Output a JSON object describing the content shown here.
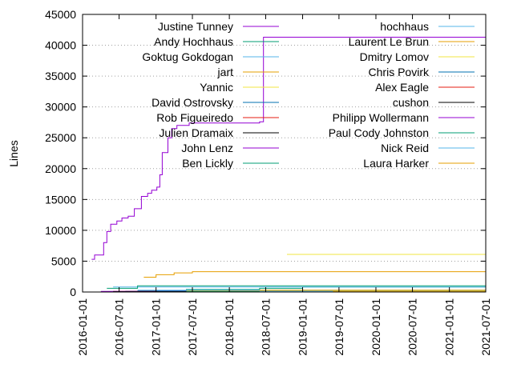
{
  "chart_data": {
    "type": "line",
    "ylabel": "Lines",
    "xlabel": "",
    "title": "",
    "ylim": [
      0,
      45000
    ],
    "yticks": [
      0,
      5000,
      10000,
      15000,
      20000,
      25000,
      30000,
      35000,
      40000,
      45000
    ],
    "xlim": [
      "2016-01-01",
      "2021-07-01"
    ],
    "xticks": [
      "2016-01-01",
      "2016-07-01",
      "2017-01-01",
      "2017-07-01",
      "2018-01-01",
      "2018-07-01",
      "2019-01-01",
      "2019-07-01",
      "2020-01-01",
      "2020-07-01",
      "2021-01-01",
      "2021-07-01"
    ],
    "grid": "horizontal dotted",
    "legend_placement": "top, two columns",
    "step": true,
    "series": [
      {
        "name": "Justine Tunney",
        "color": "#9400d3",
        "points": [
          [
            "2016-02-15",
            5300
          ],
          [
            "2016-03-01",
            6000
          ],
          [
            "2016-04-15",
            8000
          ],
          [
            "2016-05-01",
            9800
          ],
          [
            "2016-05-20",
            11000
          ],
          [
            "2016-06-20",
            11500
          ],
          [
            "2016-07-15",
            12000
          ],
          [
            "2016-08-15",
            12300
          ],
          [
            "2016-09-15",
            13500
          ],
          [
            "2016-10-20",
            15500
          ],
          [
            "2016-11-20",
            16000
          ],
          [
            "2016-12-10",
            16500
          ],
          [
            "2017-01-05",
            17000
          ],
          [
            "2017-01-20",
            19000
          ],
          [
            "2017-02-01",
            22600
          ],
          [
            "2017-03-01",
            25000
          ],
          [
            "2017-03-20",
            26500
          ],
          [
            "2017-04-15",
            27000
          ],
          [
            "2017-06-15",
            27400
          ],
          [
            "2018-06-01",
            27600
          ],
          [
            "2018-06-20",
            41300
          ],
          [
            "2021-07-01",
            41300
          ]
        ]
      },
      {
        "name": "Andy Hochhaus",
        "color": "#009e73",
        "points": [
          [
            "2016-10-01",
            200
          ],
          [
            "2017-06-01",
            400
          ],
          [
            "2018-06-01",
            600
          ],
          [
            "2019-01-01",
            800
          ],
          [
            "2021-07-01",
            900
          ]
        ]
      },
      {
        "name": "Goktug Gokdogan",
        "color": "#56b4e9",
        "points": [
          [
            "2016-06-01",
            800
          ],
          [
            "2021-07-01",
            800
          ]
        ]
      },
      {
        "name": "jart",
        "color": "#e69f00",
        "points": [
          [
            "2016-11-01",
            2400
          ],
          [
            "2017-01-01",
            2800
          ],
          [
            "2017-04-01",
            3100
          ],
          [
            "2017-07-01",
            3300
          ],
          [
            "2021-07-01",
            3300
          ]
        ]
      },
      {
        "name": "Yannic",
        "color": "#f0e442",
        "points": [
          [
            "2018-10-15",
            6100
          ],
          [
            "2021-07-01",
            6100
          ]
        ]
      },
      {
        "name": "David Ostrovsky",
        "color": "#0072b2",
        "points": [
          [
            "2017-01-01",
            200
          ],
          [
            "2021-07-01",
            300
          ]
        ]
      },
      {
        "name": "Rob Figueiredo",
        "color": "#e51e10",
        "points": [
          [
            "2016-06-01",
            100
          ],
          [
            "2021-07-01",
            150
          ]
        ]
      },
      {
        "name": "Julien Dramaix",
        "color": "#000000",
        "points": [
          [
            "2016-08-01",
            100
          ],
          [
            "2021-07-01",
            100
          ]
        ]
      },
      {
        "name": "John Lenz",
        "color": "#9400d3",
        "points": [
          [
            "2016-04-01",
            100
          ],
          [
            "2021-07-01",
            200
          ]
        ]
      },
      {
        "name": "Ben Lickly",
        "color": "#009e73",
        "points": [
          [
            "2016-05-01",
            600
          ],
          [
            "2016-10-01",
            1000
          ],
          [
            "2021-07-01",
            1100
          ]
        ]
      },
      {
        "name": "hochhaus",
        "color": "#56b4e9",
        "points": [
          [
            "2016-10-01",
            300
          ],
          [
            "2021-07-01",
            300
          ]
        ]
      },
      {
        "name": "Laurent Le Brun",
        "color": "#e69f00",
        "points": [
          [
            "2018-06-01",
            300
          ],
          [
            "2021-07-01",
            400
          ]
        ]
      },
      {
        "name": "Dmitry Lomov",
        "color": "#f0e442",
        "points": [
          [
            "2017-06-01",
            200
          ],
          [
            "2021-07-01",
            200
          ]
        ]
      },
      {
        "name": "Chris Povirk",
        "color": "#0072b2",
        "points": [
          [
            "2017-01-01",
            100
          ],
          [
            "2021-07-01",
            100
          ]
        ]
      },
      {
        "name": "Alex Eagle",
        "color": "#e51e10",
        "points": [
          [
            "2017-06-01",
            100
          ],
          [
            "2021-07-01",
            100
          ]
        ]
      },
      {
        "name": "cushon",
        "color": "#000000",
        "points": [
          [
            "2016-06-01",
            50
          ],
          [
            "2021-07-01",
            50
          ]
        ]
      },
      {
        "name": "Philipp Wollermann",
        "color": "#9400d3",
        "points": [
          [
            "2018-01-01",
            100
          ],
          [
            "2021-07-01",
            100
          ]
        ]
      },
      {
        "name": "Paul Cody Johnston",
        "color": "#009e73",
        "points": [
          [
            "2017-06-01",
            100
          ],
          [
            "2021-07-01",
            100
          ]
        ]
      },
      {
        "name": "Nick Reid",
        "color": "#56b4e9",
        "points": [
          [
            "2018-06-01",
            100
          ],
          [
            "2021-07-01",
            100
          ]
        ]
      },
      {
        "name": "Laura Harker",
        "color": "#e69f00",
        "points": [
          [
            "2019-06-01",
            100
          ],
          [
            "2021-07-01",
            100
          ]
        ]
      }
    ]
  }
}
